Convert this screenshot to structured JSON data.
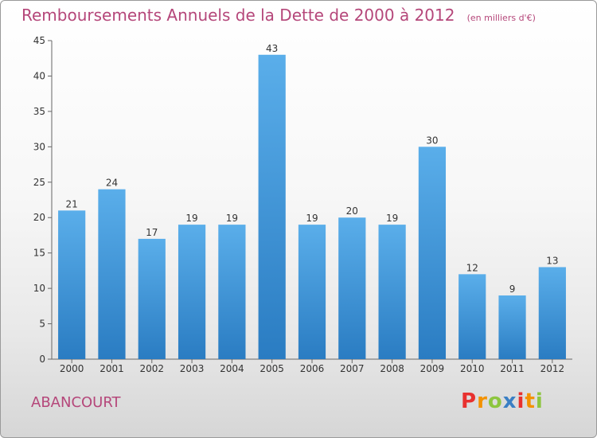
{
  "title": "Remboursements Annuels de la Dette de 2000 à 2012",
  "unit": "(en milliers d'€)",
  "city": "ABANCOURT",
  "logo": {
    "letters": [
      "P",
      "r",
      "o",
      "x",
      "i",
      "t",
      "i"
    ],
    "colors": [
      "#e8312f",
      "#f39200",
      "#8dc63f",
      "#3a7fc4",
      "#e8312f",
      "#f39200",
      "#8dc63f"
    ]
  },
  "chart_data": {
    "type": "bar",
    "categories": [
      "2000",
      "2001",
      "2002",
      "2003",
      "2004",
      "2005",
      "2006",
      "2007",
      "2008",
      "2009",
      "2010",
      "2011",
      "2012"
    ],
    "values": [
      21,
      24,
      17,
      19,
      19,
      43,
      19,
      20,
      19,
      30,
      12,
      9,
      13
    ],
    "ylim": [
      0,
      45
    ],
    "yticks": [
      0,
      5,
      10,
      15,
      20,
      25,
      30,
      35,
      40,
      45
    ],
    "grid": false,
    "bar_color": "#3d8fd6"
  }
}
